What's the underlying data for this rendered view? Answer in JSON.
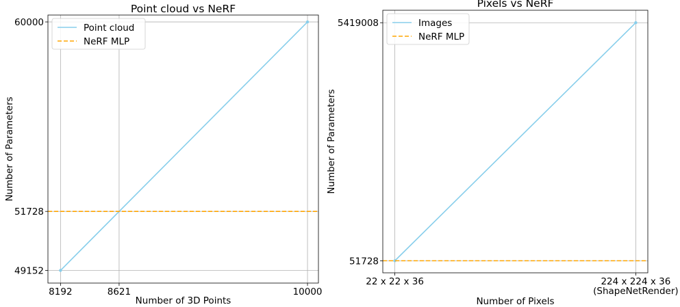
{
  "chart_data": [
    {
      "type": "line",
      "title": "Point cloud vs NeRF",
      "xlabel": "Number of 3D Points",
      "ylabel": "Number of Parameters",
      "x": [
        8192,
        10000
      ],
      "xticks": [
        8192,
        8621,
        10000
      ],
      "xtick_labels": [
        "8192",
        "8621",
        "10000"
      ],
      "yticks": [
        49152,
        51728,
        60000
      ],
      "ytick_labels": [
        "49152",
        "51728",
        "60000"
      ],
      "xlim": [
        8100,
        10080
      ],
      "ylim": [
        48600,
        60300
      ],
      "grid": true,
      "legend_position": "top-left",
      "series": [
        {
          "name": "Point cloud",
          "x": [
            8192,
            10000
          ],
          "values": [
            49152,
            60000
          ],
          "color": "#87ceeb",
          "style": "solid",
          "markers": true
        },
        {
          "name": "NeRF MLP",
          "x": [
            8100,
            10080
          ],
          "values": [
            51728,
            51728
          ],
          "color": "#ffa500",
          "style": "dashed",
          "markers": false
        }
      ]
    },
    {
      "type": "line",
      "title": "Pixels vs NeRF",
      "xlabel": "Number of Pixels",
      "ylabel": "Number of Parameters",
      "categories": [
        "22 x 22 x 36",
        "224 x 224 x 36\n(ShapeNetRender)"
      ],
      "yticks": [
        51728,
        5419008
      ],
      "ytick_labels": [
        "51728",
        "5419008"
      ],
      "xlim": [
        -0.05,
        1.05
      ],
      "ylim": [
        -220000,
        5700000
      ],
      "grid": true,
      "legend_position": "top-left",
      "series": [
        {
          "name": "Images",
          "values": [
            51728,
            5419008
          ],
          "color": "#87ceeb",
          "style": "solid",
          "markers": true
        },
        {
          "name": "NeRF MLP",
          "values": [
            51728,
            51728
          ],
          "color": "#ffa500",
          "style": "dashed",
          "markers": false
        }
      ]
    }
  ]
}
